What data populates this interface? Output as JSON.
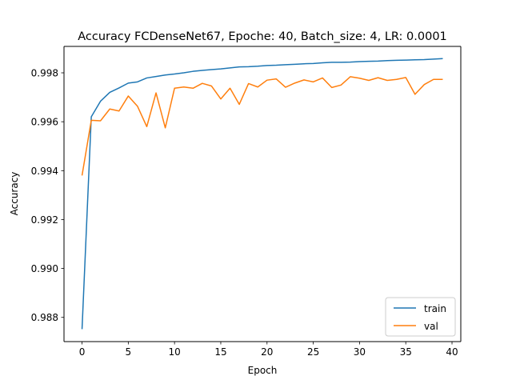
{
  "chart_data": {
    "type": "line",
    "title": "Accuracy FCDenseNet67, Epoche: 40, Batch_size: 4, LR: 0.0001",
    "xlabel": "Epoch",
    "ylabel": "Accuracy",
    "xlim": [
      -1.95,
      40.95
    ],
    "ylim": [
      0.98701,
      0.99908
    ],
    "xticks": [
      0,
      5,
      10,
      15,
      20,
      25,
      30,
      35,
      40
    ],
    "yticks": [
      0.988,
      0.99,
      0.992,
      0.994,
      0.996,
      0.998
    ],
    "ytick_labels": [
      "0.988",
      "0.990",
      "0.992",
      "0.994",
      "0.996",
      "0.998"
    ],
    "grid": false,
    "legend_position": "lower-right",
    "x": [
      0,
      1,
      2,
      3,
      4,
      5,
      6,
      7,
      8,
      9,
      10,
      11,
      12,
      13,
      14,
      15,
      16,
      17,
      18,
      19,
      20,
      21,
      22,
      23,
      24,
      25,
      26,
      27,
      28,
      29,
      30,
      31,
      32,
      33,
      34,
      35,
      36,
      37,
      38,
      39
    ],
    "series": [
      {
        "name": "train",
        "color": "#1f77b4",
        "values": [
          0.98752,
          0.9962,
          0.99684,
          0.9972,
          0.99738,
          0.99758,
          0.99763,
          0.99779,
          0.99785,
          0.99791,
          0.99795,
          0.998,
          0.99806,
          0.9981,
          0.99813,
          0.99816,
          0.9982,
          0.99824,
          0.99825,
          0.99827,
          0.9983,
          0.99831,
          0.99833,
          0.99835,
          0.99837,
          0.99838,
          0.99841,
          0.99843,
          0.99843,
          0.99844,
          0.99846,
          0.99847,
          0.99848,
          0.9985,
          0.99851,
          0.99852,
          0.99853,
          0.99854,
          0.99856,
          0.99858
        ]
      },
      {
        "name": "val",
        "color": "#ff7f0e",
        "values": [
          0.9938,
          0.99606,
          0.99604,
          0.99652,
          0.99644,
          0.99705,
          0.99663,
          0.9958,
          0.99718,
          0.99575,
          0.99737,
          0.99742,
          0.99737,
          0.99757,
          0.99746,
          0.99693,
          0.99737,
          0.99671,
          0.99756,
          0.99742,
          0.9977,
          0.99775,
          0.99741,
          0.99758,
          0.99771,
          0.99763,
          0.99779,
          0.9974,
          0.9975,
          0.99784,
          0.99778,
          0.99769,
          0.9978,
          0.99769,
          0.99773,
          0.99781,
          0.99712,
          0.99752,
          0.99773,
          0.99773
        ]
      }
    ]
  }
}
